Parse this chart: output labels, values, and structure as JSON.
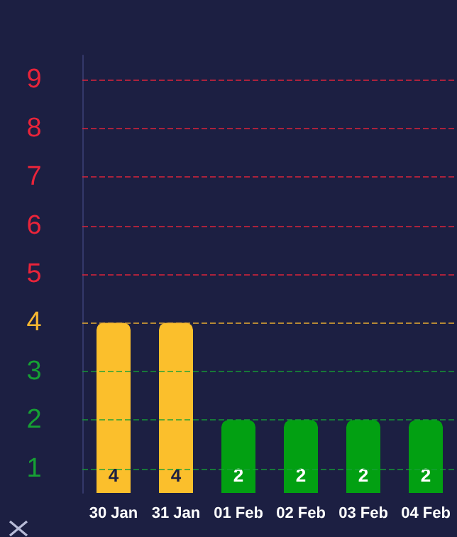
{
  "chart_data": {
    "type": "bar",
    "categories": [
      "30 Jan",
      "31 Jan",
      "01 Feb",
      "02 Feb",
      "03 Feb",
      "04 Feb"
    ],
    "values": [
      4,
      4,
      2,
      2,
      2,
      2
    ],
    "colors": [
      "#fbbf2c",
      "#fbbf2c",
      "#02a012",
      "#02a012",
      "#02a012",
      "#02a012"
    ],
    "ylim": [
      0.5,
      9.5
    ],
    "yticks": [
      1,
      2,
      3,
      4,
      5,
      6,
      7,
      8,
      9
    ],
    "ref_lines": [
      {
        "axis": "y",
        "value": 1,
        "color": "#16a034",
        "line_style": "dashed"
      },
      {
        "axis": "y",
        "value": 2,
        "color": "#16a034",
        "line_style": "dashed"
      },
      {
        "axis": "y",
        "value": 3,
        "color": "#16a034",
        "line_style": "dashed"
      },
      {
        "axis": "y",
        "value": 4,
        "color": "#f7b731",
        "line_style": "dashed"
      },
      {
        "axis": "y",
        "value": 5,
        "color": "#e8243a",
        "line_style": "dashed"
      },
      {
        "axis": "y",
        "value": 6,
        "color": "#e8243a",
        "line_style": "dashed"
      },
      {
        "axis": "y",
        "value": 7,
        "color": "#e8243a",
        "line_style": "dashed"
      },
      {
        "axis": "y",
        "value": 8,
        "color": "#e8243a",
        "line_style": "dashed"
      },
      {
        "axis": "y",
        "value": 9,
        "color": "#e8243a",
        "line_style": "dashed"
      }
    ],
    "data_labels": true,
    "grid": false
  }
}
